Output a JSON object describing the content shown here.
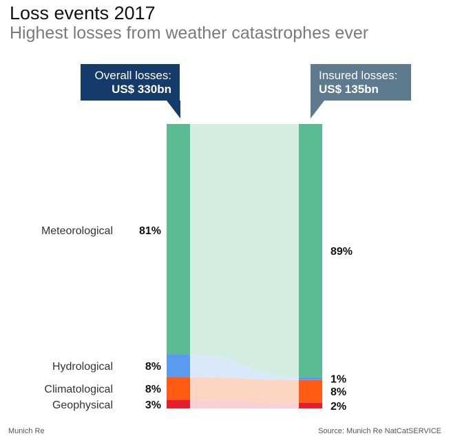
{
  "header": {
    "title": "Loss events 2017",
    "subtitle": "Highest losses from weather catastrophes ever"
  },
  "callouts": {
    "overall_label": "Overall losses:",
    "overall_value": "US$ 330bn",
    "insured_label": "Insured losses:",
    "insured_value": "US$ 135bn"
  },
  "footer": {
    "left": "Munich Re",
    "right": "Source: Munich Re NatCatSERVICE"
  },
  "chart_data": {
    "type": "bar",
    "subtype": "two stacked 100% columns connected by flow bands",
    "categories": [
      "Meteorological",
      "Hydrological",
      "Climatological",
      "Geophysical"
    ],
    "series": [
      {
        "name": "Overall losses",
        "total": "US$ 330bn",
        "values": [
          81,
          8,
          8,
          3
        ],
        "labels": [
          "81%",
          "8%",
          "8%",
          "3%"
        ]
      },
      {
        "name": "Insured losses",
        "total": "US$ 135bn",
        "values": [
          89,
          1,
          8,
          2
        ],
        "labels": [
          "89%",
          "1%",
          "8%",
          "2%"
        ]
      }
    ],
    "unit": "%",
    "colors": {
      "Meteorological": "#5bbb94",
      "Hydrological": "#5b9bef",
      "Climatological": "#ff5b14",
      "Geophysical": "#e41e2a"
    },
    "flow_colors": {
      "Meteorological": "#d3ede3",
      "Hydrological": "#d9e8fb",
      "Climatological": "#fdd6c3",
      "Geophysical": "#f9d1d5"
    },
    "callout_colors": {
      "overall": "#143b6a",
      "insured": "#5e7a8f"
    }
  }
}
